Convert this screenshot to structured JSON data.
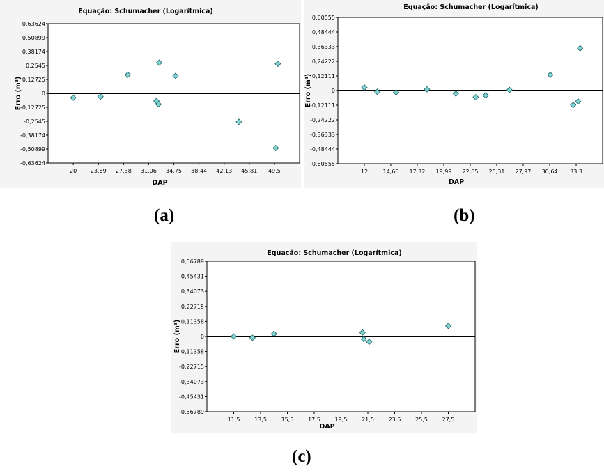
{
  "captions": [
    "(a)",
    "(b)",
    "(c)"
  ],
  "chart_data": [
    {
      "type": "scatter",
      "title": "Equação: Schumacher (Logarítmica)",
      "xlabel": "DAP",
      "ylabel": "Erro (m³)",
      "xticks": [
        "20",
        "23,69",
        "27,38",
        "31,06",
        "34,75",
        "38,44",
        "42,13",
        "45,81",
        "49,5"
      ],
      "yticks": [
        "0,63624",
        "0,50899",
        "0,38174",
        "0,2545",
        "0,12725",
        "0",
        "-0,12725",
        "-0,2545",
        "-0,38174",
        "-0,50899",
        "-0,63624"
      ],
      "xlim": [
        16.31,
        53.19
      ],
      "ylim": [
        -0.63624,
        0.63624
      ],
      "x": [
        20,
        24.0,
        28.0,
        32.2,
        32.5,
        32.6,
        35.0,
        44.3,
        49.7,
        50.0
      ],
      "y": [
        -0.04,
        -0.03,
        0.17,
        -0.07,
        -0.1,
        0.28,
        0.16,
        -0.26,
        -0.5,
        0.27
      ],
      "zero_line": true,
      "grid": false,
      "marker": "diamond",
      "marker_color": "#7fd3d3"
    },
    {
      "type": "scatter",
      "title": "Equação: Schumacher (Logarítmica)",
      "xlabel": "DAP",
      "ylabel": "Erro (m³)",
      "xticks": [
        "12",
        "14,66",
        "17,32",
        "19,99",
        "22,65",
        "25,31",
        "27,97",
        "30,64",
        "33,3"
      ],
      "yticks": [
        "0,60555",
        "0,48444",
        "0,36333",
        "0,24222",
        "0,12111",
        "0",
        "-0,12111",
        "-0,24222",
        "-0,36333",
        "-0,48444",
        "-0,60555"
      ],
      "xlim": [
        9.34,
        35.96
      ],
      "ylim": [
        -0.60555,
        0.60555
      ],
      "x": [
        12.0,
        13.3,
        15.2,
        18.3,
        21.2,
        23.2,
        24.2,
        26.6,
        30.7,
        33.0,
        33.5,
        33.7
      ],
      "y": [
        0.025,
        -0.01,
        -0.015,
        0.01,
        -0.025,
        -0.055,
        -0.04,
        0.005,
        0.13,
        -0.12,
        -0.09,
        0.35
      ],
      "zero_line": true,
      "grid": false,
      "marker": "diamond",
      "marker_color": "#7fd3d3"
    },
    {
      "type": "scatter",
      "title": "Equação: Schumacher (Logarítmica)",
      "xlabel": "DAP",
      "ylabel": "Erro (m³)",
      "xticks": [
        "11,5",
        "13,5",
        "15,5",
        "17,5",
        "19,5",
        "21,5",
        "23,5",
        "25,5",
        "27,5"
      ],
      "yticks": [
        "0,56789",
        "0,45431",
        "0,34073",
        "0,22715",
        "0,11358",
        "0",
        "-0,11358",
        "-0,22715",
        "-0,34073",
        "-0,45431",
        "-0,56789"
      ],
      "xlim": [
        9.5,
        29.5
      ],
      "ylim": [
        -0.56789,
        0.56789
      ],
      "x": [
        11.5,
        12.9,
        14.5,
        21.1,
        21.2,
        21.6,
        27.5
      ],
      "y": [
        0.0,
        -0.01,
        0.02,
        0.03,
        -0.02,
        -0.04,
        0.08
      ],
      "zero_line": true,
      "grid": false,
      "marker": "diamond",
      "marker_color": "#7fd3d3"
    }
  ]
}
